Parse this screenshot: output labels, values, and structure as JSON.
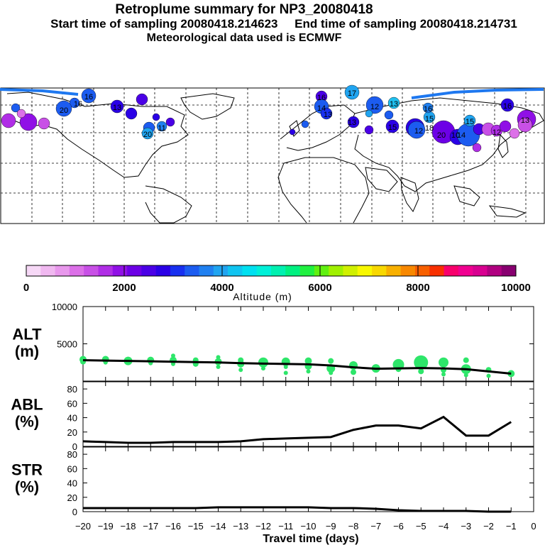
{
  "header": {
    "title": "Retroplume summary for NP3_20080418",
    "subtitle": "Start time of sampling 20080418.214623     End time of sampling 20080418.214731",
    "met": "Meteorological data used is ECMWF"
  },
  "map": {
    "name": "northern-hemisphere-map",
    "plume_labels": [
      "16",
      "16",
      "20",
      "13",
      "20",
      "16",
      "12",
      "13",
      "15",
      "17",
      "15",
      "16",
      "12",
      "20",
      "15",
      "16",
      "13",
      "14",
      "13",
      "11",
      "10",
      "12",
      "13",
      "18",
      "14"
    ]
  },
  "colorbar": {
    "title": "Altitude (m)",
    "tick_labels": [
      "0",
      "2000",
      "4000",
      "6000",
      "8000",
      "10000"
    ],
    "colors": [
      "#f6d8f6",
      "#f0b8f0",
      "#e898ec",
      "#dc70e8",
      "#c850e6",
      "#b02ee6",
      "#9010e6",
      "#6c00e6",
      "#4a00e6",
      "#2a00e6",
      "#1830f0",
      "#1c5cf0",
      "#2080f0",
      "#20a4f0",
      "#10c4f0",
      "#00e0f0",
      "#00f0d8",
      "#00f0b0",
      "#00f080",
      "#20f040",
      "#60f010",
      "#a0f000",
      "#d0f000",
      "#f8f800",
      "#f8d800",
      "#f8b000",
      "#f88800",
      "#f86000",
      "#f83000",
      "#f8006c",
      "#f00090",
      "#d80090",
      "#b00080",
      "#880070"
    ]
  },
  "chart_data": [
    {
      "type": "line",
      "name": "ALT",
      "ylabel": "ALT\n(m)",
      "ylabel_lines": [
        "ALT",
        "(m)"
      ],
      "ylim": [
        0,
        10000
      ],
      "yticks": [
        5000,
        10000
      ],
      "ytick_labels": [
        "5000",
        "10000"
      ],
      "x": [
        -20,
        -19,
        -18,
        -17,
        -16,
        -15,
        -14,
        -13,
        -12,
        -11,
        -10,
        -9,
        -8,
        -7,
        -6,
        -5,
        -4,
        -3,
        -2,
        -1
      ],
      "values": [
        2800,
        2750,
        2700,
        2650,
        2600,
        2550,
        2500,
        2400,
        2350,
        2300,
        2250,
        2100,
        1850,
        1650,
        1700,
        1750,
        1700,
        1600,
        1300,
        1000
      ],
      "scatter": [
        {
          "x": -20,
          "y": 2900,
          "s": 5
        },
        {
          "x": -20,
          "y": 2600,
          "s": 4
        },
        {
          "x": -19,
          "y": 2900,
          "s": 5
        },
        {
          "x": -19,
          "y": 2500,
          "s": 3
        },
        {
          "x": -18,
          "y": 2700,
          "s": 6
        },
        {
          "x": -18,
          "y": 2500,
          "s": 3
        },
        {
          "x": -17,
          "y": 2800,
          "s": 5
        },
        {
          "x": -17,
          "y": 2400,
          "s": 3
        },
        {
          "x": -16,
          "y": 3400,
          "s": 3
        },
        {
          "x": -16,
          "y": 2800,
          "s": 5
        },
        {
          "x": -16,
          "y": 2300,
          "s": 3
        },
        {
          "x": -15,
          "y": 2800,
          "s": 4
        },
        {
          "x": -15,
          "y": 2300,
          "s": 4
        },
        {
          "x": -14,
          "y": 3200,
          "s": 3
        },
        {
          "x": -14,
          "y": 2600,
          "s": 5
        },
        {
          "x": -14,
          "y": 1900,
          "s": 3
        },
        {
          "x": -13,
          "y": 2800,
          "s": 4
        },
        {
          "x": -13,
          "y": 2300,
          "s": 5
        },
        {
          "x": -13,
          "y": 1500,
          "s": 3
        },
        {
          "x": -12,
          "y": 2500,
          "s": 7
        },
        {
          "x": -12,
          "y": 1700,
          "s": 3
        },
        {
          "x": -11,
          "y": 2600,
          "s": 6
        },
        {
          "x": -11,
          "y": 1900,
          "s": 3
        },
        {
          "x": -11,
          "y": 1100,
          "s": 3
        },
        {
          "x": -10,
          "y": 2700,
          "s": 5
        },
        {
          "x": -10,
          "y": 2000,
          "s": 5
        },
        {
          "x": -10,
          "y": 1300,
          "s": 3
        },
        {
          "x": -9,
          "y": 2700,
          "s": 4
        },
        {
          "x": -9,
          "y": 1700,
          "s": 6
        },
        {
          "x": -9,
          "y": 1100,
          "s": 3
        },
        {
          "x": -8,
          "y": 2100,
          "s": 6
        },
        {
          "x": -8,
          "y": 1200,
          "s": 4
        },
        {
          "x": -7,
          "y": 1700,
          "s": 6
        },
        {
          "x": -6,
          "y": 2200,
          "s": 8
        },
        {
          "x": -6,
          "y": 1600,
          "s": 4
        },
        {
          "x": -5,
          "y": 2500,
          "s": 10
        },
        {
          "x": -5,
          "y": 1300,
          "s": 4
        },
        {
          "x": -4,
          "y": 2500,
          "s": 7
        },
        {
          "x": -4,
          "y": 1500,
          "s": 4
        },
        {
          "x": -4,
          "y": 900,
          "s": 3
        },
        {
          "x": -3,
          "y": 2800,
          "s": 4
        },
        {
          "x": -3,
          "y": 1600,
          "s": 7
        },
        {
          "x": -3,
          "y": 800,
          "s": 3
        },
        {
          "x": -2,
          "y": 1500,
          "s": 4
        },
        {
          "x": -2,
          "y": 700,
          "s": 3
        },
        {
          "x": -1,
          "y": 1000,
          "s": 5
        }
      ]
    },
    {
      "type": "line",
      "name": "ABL",
      "ylabel": "ABL\n(%)",
      "ylabel_lines": [
        "ABL",
        "(%)"
      ],
      "ylim": [
        0,
        90
      ],
      "yticks": [
        0,
        20,
        40,
        60,
        80
      ],
      "ytick_labels": [
        "0",
        "20",
        "40",
        "60",
        "80"
      ],
      "x": [
        -20,
        -19,
        -18,
        -17,
        -16,
        -15,
        -14,
        -13,
        -12,
        -11,
        -10,
        -9,
        -8,
        -7,
        -6,
        -5,
        -4,
        -3,
        -2,
        -1
      ],
      "values": [
        7,
        6,
        5,
        5,
        6,
        6,
        6,
        7,
        10,
        11,
        12,
        13,
        23,
        29,
        29,
        25,
        41,
        15,
        15,
        34
      ]
    },
    {
      "type": "line",
      "name": "STR",
      "ylabel": "STR\n(%)",
      "ylabel_lines": [
        "STR",
        "(%)"
      ],
      "ylim": [
        0,
        90
      ],
      "yticks": [
        0,
        20,
        40,
        60,
        80
      ],
      "ytick_labels": [
        "0",
        "20",
        "40",
        "60",
        "80"
      ],
      "x": [
        -20,
        -19,
        -18,
        -17,
        -16,
        -15,
        -14,
        -13,
        -12,
        -11,
        -10,
        -9,
        -8,
        -7,
        -6,
        -5,
        -4,
        -3,
        -2,
        -1
      ],
      "values": [
        5,
        5,
        5,
        5,
        5,
        5,
        6,
        6,
        6,
        6,
        6,
        5,
        5,
        4,
        2,
        1,
        1,
        1,
        0,
        0
      ]
    }
  ],
  "xaxis": {
    "xlim": [
      -20,
      0
    ],
    "tick_values": [
      -20,
      -19,
      -18,
      -17,
      -16,
      -15,
      -14,
      -13,
      -12,
      -11,
      -10,
      -9,
      -8,
      -7,
      -6,
      -5,
      -4,
      -3,
      -2,
      -1,
      0
    ],
    "tick_labels": [
      "−20",
      "−19",
      "−18",
      "−17",
      "−16",
      "−15",
      "−14",
      "−13",
      "−12",
      "−11",
      "−10",
      "−9",
      "−8",
      "−7",
      "−6",
      "−5",
      "−4",
      "−3",
      "−2",
      "−1",
      "0"
    ],
    "xlabel": "Travel time (days)"
  },
  "colors": {
    "scatter": "#2ee66a",
    "line": "#000000",
    "track": "#1e78f0"
  }
}
